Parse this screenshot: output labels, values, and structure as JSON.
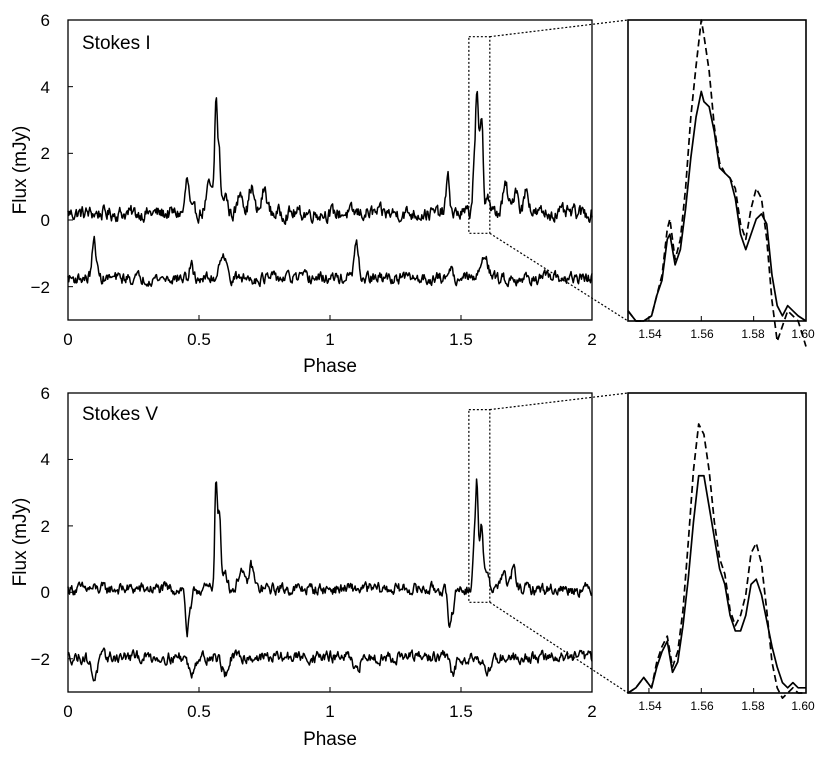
{
  "chart_data": [
    {
      "type": "line",
      "title": "Stokes I",
      "xlabel": "Phase",
      "ylabel": "Flux (mJy)",
      "xlim": [
        0,
        2
      ],
      "ylim": [
        -3,
        6
      ],
      "xticks": [
        "0",
        "0.5",
        "1",
        "1.5",
        "2"
      ],
      "yticks": [
        "−2",
        "0",
        "2",
        "4",
        "6"
      ],
      "zoom_window": {
        "x": [
          1.53,
          1.61
        ],
        "y": [
          -0.4,
          5.5
        ]
      },
      "series": [
        {
          "baseline": 0.2,
          "noise": 0.25,
          "peaks": [
            [
              0.455,
              0.007,
              1.0
            ],
            [
              0.54,
              0.012,
              0.8
            ],
            [
              0.565,
              0.005,
              3.3
            ],
            [
              0.577,
              0.005,
              1.8
            ],
            [
              0.6,
              0.008,
              0.6
            ],
            [
              0.66,
              0.01,
              0.7
            ],
            [
              0.7,
              0.009,
              0.8
            ],
            [
              0.75,
              0.01,
              0.7
            ],
            [
              1.45,
              0.007,
              1.0
            ],
            [
              1.548,
              0.004,
              1.1
            ],
            [
              1.56,
              0.006,
              3.5
            ],
            [
              1.575,
              0.006,
              2.0
            ],
            [
              1.582,
              0.004,
              1.4
            ],
            [
              1.6,
              0.008,
              0.6
            ],
            [
              1.67,
              0.01,
              0.8
            ],
            [
              1.71,
              0.009,
              0.8
            ],
            [
              1.75,
              0.01,
              0.7
            ]
          ]
        },
        {
          "baseline": -1.75,
          "noise": 0.2,
          "peaks": [
            [
              0.1,
              0.008,
              1.1
            ],
            [
              0.59,
              0.012,
              0.8
            ],
            [
              0.47,
              0.006,
              0.4
            ],
            [
              1.1,
              0.008,
              1.0
            ],
            [
              1.59,
              0.012,
              0.8
            ],
            [
              1.46,
              0.006,
              0.4
            ]
          ]
        }
      ]
    },
    {
      "type": "line",
      "title": "Stokes V",
      "xlabel": "Phase",
      "ylabel": "Flux (mJy)",
      "xlim": [
        0,
        2
      ],
      "ylim": [
        -3,
        6
      ],
      "xticks": [
        "0",
        "0.5",
        "1",
        "1.5",
        "2"
      ],
      "yticks": [
        "−2",
        "0",
        "2",
        "4",
        "6"
      ],
      "zoom_window": {
        "x": [
          1.53,
          1.61
        ],
        "y": [
          -0.3,
          5.5
        ]
      },
      "series": [
        {
          "baseline": 0.1,
          "noise": 0.2,
          "peaks": [
            [
              0.455,
              0.006,
              -1.3
            ],
            [
              0.47,
              0.006,
              -0.6
            ],
            [
              0.565,
              0.005,
              3.3
            ],
            [
              0.578,
              0.005,
              2.2
            ],
            [
              0.6,
              0.008,
              0.6
            ],
            [
              0.66,
              0.01,
              0.6
            ],
            [
              0.7,
              0.009,
              0.7
            ],
            [
              1.455,
              0.006,
              -1.3
            ],
            [
              1.47,
              0.006,
              -0.5
            ],
            [
              1.548,
              0.004,
              0.8
            ],
            [
              1.56,
              0.006,
              3.3
            ],
            [
              1.578,
              0.006,
              1.8
            ],
            [
              1.6,
              0.008,
              0.6
            ],
            [
              1.66,
              0.01,
              0.5
            ],
            [
              1.7,
              0.009,
              0.6
            ]
          ]
        },
        {
          "baseline": -1.95,
          "noise": 0.2,
          "peaks": [
            [
              0.1,
              0.012,
              -0.6
            ],
            [
              0.47,
              0.01,
              -0.5
            ],
            [
              0.6,
              0.012,
              -0.5
            ],
            [
              1.1,
              0.012,
              -0.5
            ],
            [
              1.47,
              0.01,
              -0.5
            ],
            [
              1.6,
              0.012,
              -0.5
            ]
          ]
        }
      ]
    },
    {
      "type": "line",
      "title": "",
      "xlabel": "",
      "ylabel": "",
      "xlim": [
        1.532,
        1.6
      ],
      "ylim": [
        -0.4,
        5.5
      ],
      "xticks": [
        "1.54",
        "1.56",
        "1.58",
        "1.60"
      ],
      "series": [
        {
          "style": "solid",
          "x": [
            1.532,
            1.535,
            1.538,
            1.541,
            1.543,
            1.545,
            1.547,
            1.548,
            1.55,
            1.552,
            1.554,
            1.556,
            1.558,
            1.56,
            1.561,
            1.563,
            1.565,
            1.567,
            1.569,
            1.571,
            1.573,
            1.575,
            1.577,
            1.579,
            1.581,
            1.583,
            1.585,
            1.587,
            1.589,
            1.591,
            1.593,
            1.595,
            1.597,
            1.6
          ],
          "y": [
            -0.2,
            -0.4,
            -0.4,
            -0.3,
            0.1,
            0.4,
            1.2,
            1.3,
            0.7,
            1.0,
            1.8,
            2.8,
            3.6,
            4.1,
            3.9,
            3.8,
            3.3,
            2.6,
            2.5,
            2.4,
            2.0,
            1.3,
            1.0,
            1.3,
            1.6,
            1.7,
            1.5,
            0.5,
            -0.1,
            -0.3,
            -0.1,
            -0.2,
            -0.3,
            -0.4
          ]
        },
        {
          "style": "dashed",
          "x": [
            1.532,
            1.535,
            1.538,
            1.541,
            1.543,
            1.545,
            1.547,
            1.548,
            1.55,
            1.552,
            1.554,
            1.556,
            1.558,
            1.56,
            1.561,
            1.563,
            1.565,
            1.567,
            1.569,
            1.571,
            1.573,
            1.575,
            1.577,
            1.579,
            1.581,
            1.583,
            1.585,
            1.587,
            1.589,
            1.591,
            1.593,
            1.595,
            1.597,
            1.6
          ],
          "y": [
            -0.2,
            -0.4,
            -0.4,
            -0.3,
            0.1,
            0.5,
            1.4,
            1.6,
            0.8,
            1.2,
            2.2,
            3.6,
            4.6,
            5.5,
            5.2,
            4.5,
            3.4,
            2.7,
            2.5,
            2.4,
            2.2,
            1.5,
            1.2,
            1.8,
            2.2,
            2.0,
            1.2,
            0.0,
            -0.8,
            -0.5,
            -0.2,
            -0.3,
            -0.4,
            -0.9
          ]
        }
      ]
    },
    {
      "type": "line",
      "title": "",
      "xlabel": "",
      "ylabel": "",
      "xlim": [
        1.532,
        1.6
      ],
      "ylim": [
        -0.3,
        5.5
      ],
      "xticks": [
        "1.54",
        "1.56",
        "1.58",
        "1.60"
      ],
      "series": [
        {
          "style": "solid",
          "x": [
            1.532,
            1.535,
            1.538,
            1.541,
            1.543,
            1.545,
            1.547,
            1.549,
            1.551,
            1.553,
            1.555,
            1.557,
            1.559,
            1.561,
            1.563,
            1.565,
            1.567,
            1.569,
            1.571,
            1.573,
            1.575,
            1.577,
            1.579,
            1.581,
            1.583,
            1.585,
            1.587,
            1.589,
            1.591,
            1.593,
            1.595,
            1.597,
            1.6
          ],
          "y": [
            -0.3,
            -0.2,
            0.0,
            -0.2,
            0.2,
            0.5,
            0.7,
            0.1,
            0.3,
            1.0,
            1.9,
            3.0,
            3.9,
            3.9,
            3.3,
            2.7,
            2.1,
            1.8,
            1.2,
            0.9,
            0.9,
            1.2,
            1.8,
            1.9,
            1.6,
            1.1,
            0.6,
            0.2,
            -0.1,
            -0.2,
            -0.1,
            -0.2,
            -0.2
          ]
        },
        {
          "style": "dashed",
          "x": [
            1.532,
            1.535,
            1.538,
            1.541,
            1.543,
            1.545,
            1.547,
            1.549,
            1.551,
            1.553,
            1.555,
            1.557,
            1.559,
            1.561,
            1.563,
            1.565,
            1.567,
            1.569,
            1.571,
            1.573,
            1.575,
            1.577,
            1.579,
            1.581,
            1.583,
            1.585,
            1.587,
            1.589,
            1.591,
            1.593,
            1.595,
            1.597,
            1.6
          ],
          "y": [
            -0.3,
            -0.2,
            0.0,
            -0.2,
            0.3,
            0.6,
            0.8,
            0.2,
            0.5,
            1.3,
            2.6,
            4.0,
            4.9,
            4.7,
            4.0,
            3.0,
            2.3,
            2.0,
            1.3,
            1.0,
            1.2,
            1.6,
            2.4,
            2.6,
            2.2,
            1.3,
            0.3,
            -0.2,
            -0.4,
            -0.3,
            -0.2,
            -0.3,
            -0.3
          ]
        }
      ]
    }
  ]
}
